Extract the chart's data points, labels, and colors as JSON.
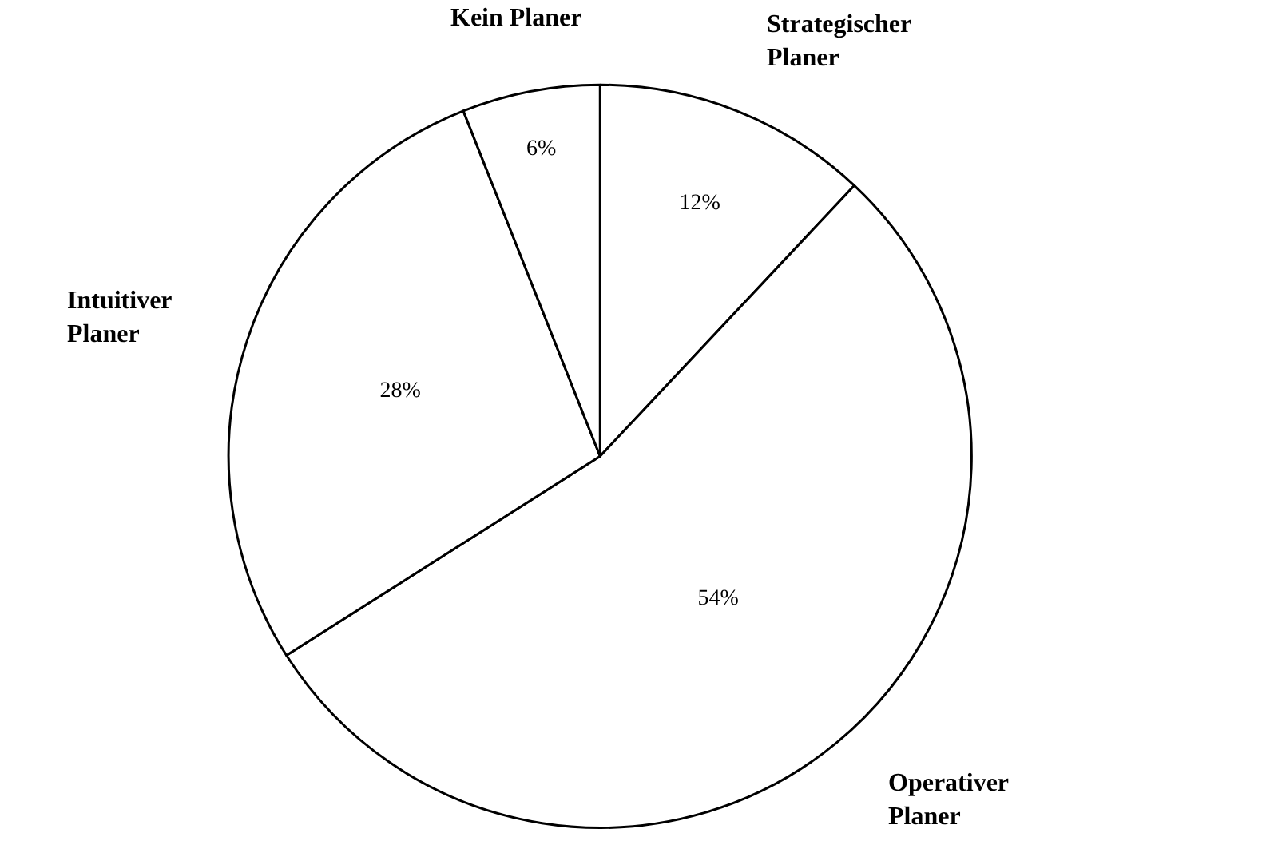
{
  "chart_data": {
    "type": "pie",
    "categories": [
      "Strategischer\nPlaner",
      "Operativer\nPlaner",
      "Intuitiver\nPlaner",
      "Kein Planer"
    ],
    "values": [
      12,
      54,
      28,
      6
    ],
    "value_labels": [
      "12%",
      "54%",
      "28%",
      "6%"
    ],
    "colors": [
      "#ffffff",
      "#ffffff",
      "#ffffff",
      "#ffffff"
    ],
    "legend": false
  }
}
